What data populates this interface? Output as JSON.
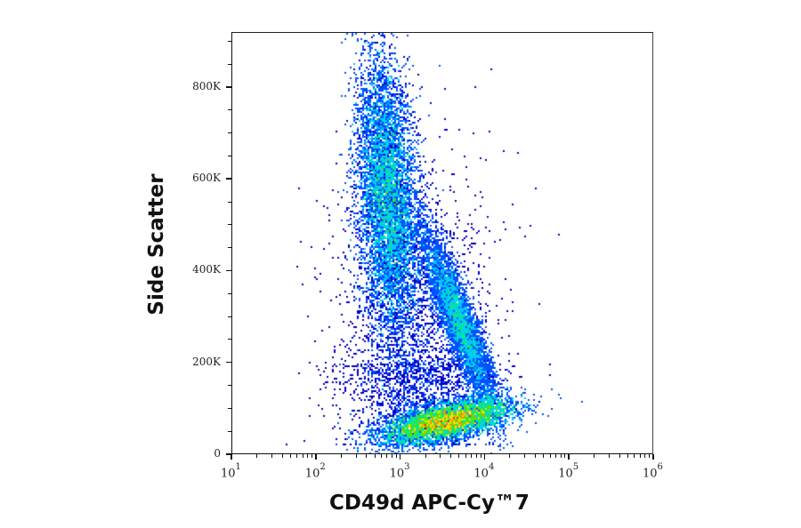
{
  "chart_data": {
    "type": "scatter",
    "subtype": "flow-cytometry density dot plot (pseudocolor)",
    "title": "",
    "xlabel": "CD49d APC-Cy™7",
    "ylabel": "Side Scatter",
    "x_scale": "log",
    "xlim": [
      10,
      1000000
    ],
    "x_ticks": [
      {
        "base": "10",
        "exp": "1"
      },
      {
        "base": "10",
        "exp": "2"
      },
      {
        "base": "10",
        "exp": "3"
      },
      {
        "base": "10",
        "exp": "4"
      },
      {
        "base": "10",
        "exp": "5"
      },
      {
        "base": "10",
        "exp": "6"
      }
    ],
    "y_scale": "linear",
    "ylim": [
      0,
      920000
    ],
    "y_ticks": [
      "0",
      "200K",
      "400K",
      "600K",
      "800K"
    ],
    "y_tick_values": [
      0,
      200000,
      400000,
      600000,
      800000
    ],
    "grid": false,
    "legend": null,
    "colormap": [
      "#0000c8",
      "#0050ff",
      "#00c8ff",
      "#00e6a0",
      "#50e600",
      "#e6e600",
      "#ff8c00",
      "#ff1e00"
    ],
    "populations": [
      {
        "name": "upper vertical population (granulocyte-like)",
        "x_center": 700,
        "y_center": 560000,
        "x_log_spread": 0.18,
        "y_spread": 140000,
        "weight": 0.36,
        "peak_color": "#e6a000"
      },
      {
        "name": "lower horizontal population (lymphocyte-like)",
        "x_center": 4000,
        "y_center": 75000,
        "x_log_spread": 0.38,
        "y_spread": 22000,
        "weight": 0.42,
        "peak_color": "#ff1e00"
      },
      {
        "name": "intermediate diagonal population (monocyte-like)",
        "x_center": 6000,
        "y_center": 280000,
        "x_log_spread": 0.22,
        "y_spread": 55000,
        "weight": 0.18,
        "peak_color": "#00c8ff"
      },
      {
        "name": "scattered events",
        "weight": 0.04
      }
    ]
  }
}
